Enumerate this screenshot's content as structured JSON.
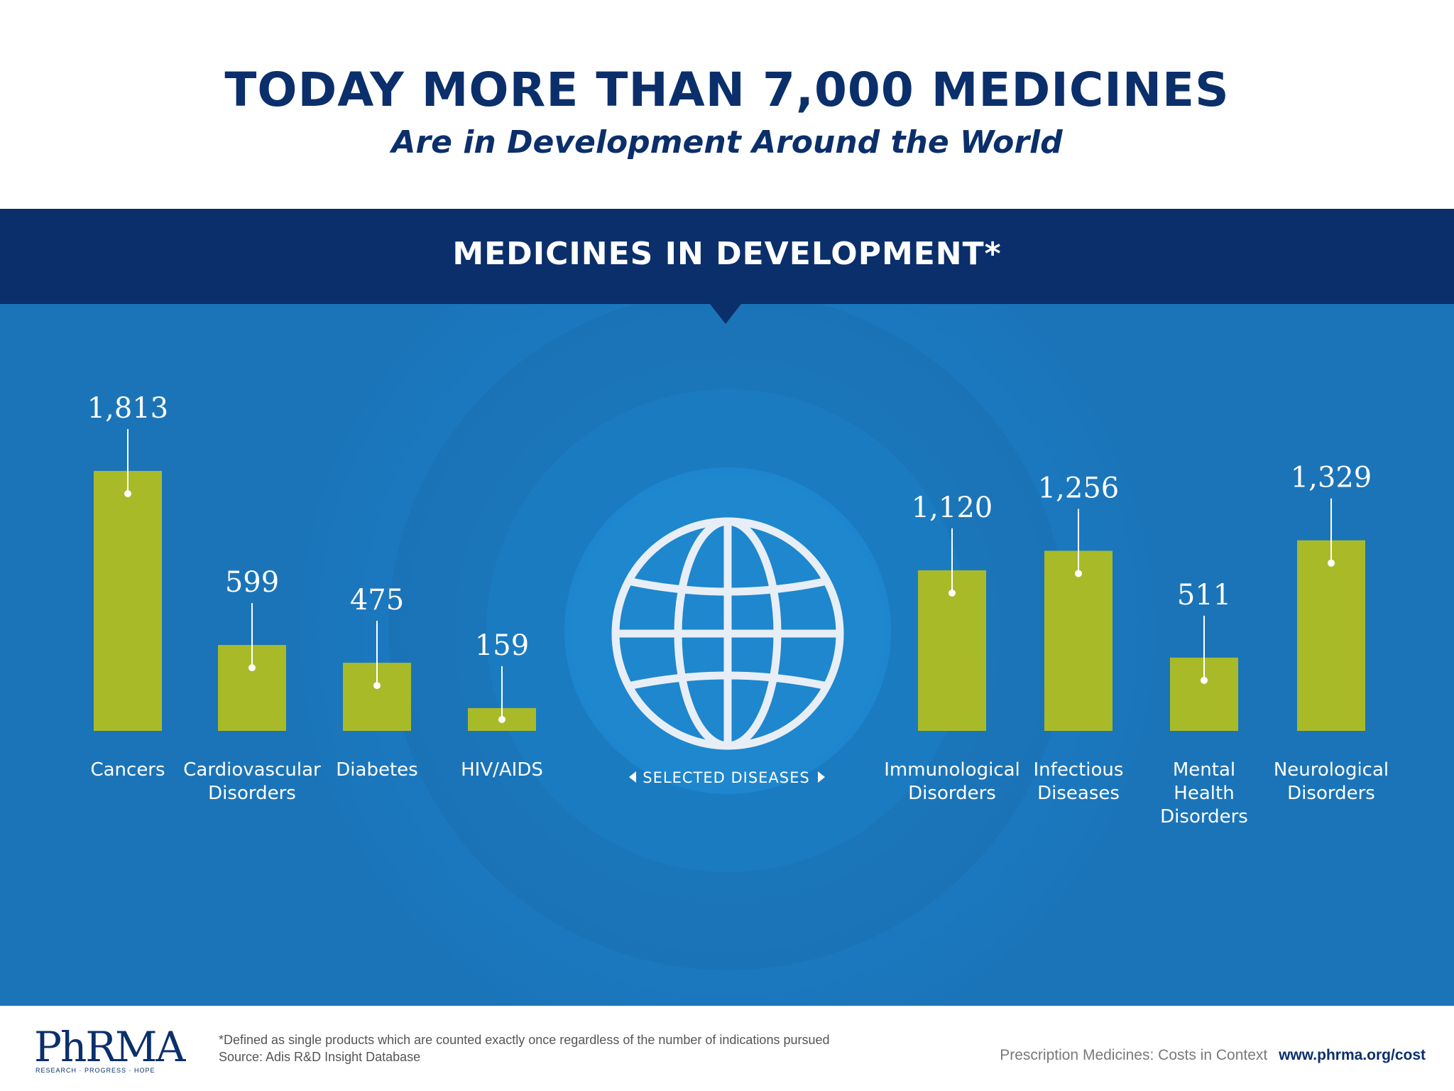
{
  "header": {
    "title": "TODAY MORE THAN 7,000 MEDICINES",
    "subtitle": "Are in Development Around the World"
  },
  "banner": {
    "title": "MEDICINES IN DEVELOPMENT*"
  },
  "chart_data": {
    "type": "bar",
    "title": "MEDICINES IN DEVELOPMENT*",
    "categories": [
      [
        "Cancers"
      ],
      [
        "Cardiovascular",
        "Disorders"
      ],
      [
        "Diabetes"
      ],
      [
        "HIV/AIDS"
      ],
      [
        "Immunological",
        "Disorders"
      ],
      [
        "Infectious",
        "Diseases"
      ],
      [
        "Mental",
        "Health",
        "Disorders"
      ],
      [
        "Neurological",
        "Disorders"
      ]
    ],
    "values": [
      1813,
      599,
      475,
      159,
      1120,
      1256,
      511,
      1329
    ],
    "value_labels": [
      "1,813",
      "599",
      "475",
      "159",
      "1,120",
      "1,256",
      "511",
      "1,329"
    ],
    "center_label": "SELECTED DISEASES",
    "bar_color": "#a9ba29",
    "background_color": "#1b74b8"
  },
  "footer": {
    "logo_text": "PhRMA",
    "logo_tagline": "RESEARCH · PROGRESS · HOPE",
    "footnote": "*Defined as single products which are counted exactly once regardless of the number of indications pursued",
    "source": "Source: Adis R&D Insight Database",
    "context": "Prescription Medicines: Costs in Context",
    "url": "www.phrma.org/cost"
  }
}
